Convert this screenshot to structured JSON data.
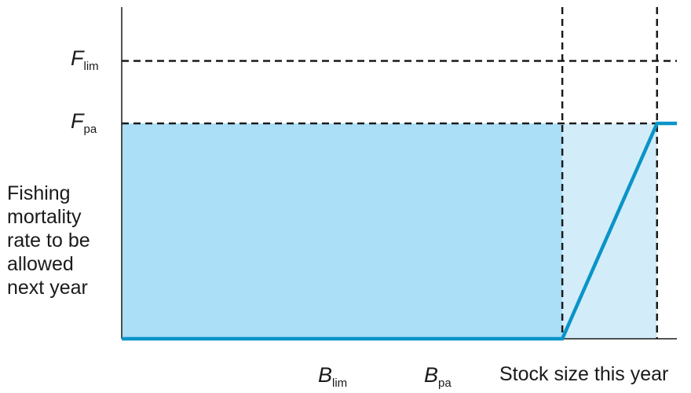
{
  "chart_data": {
    "type": "line",
    "title": "",
    "xlabel": "Stock size this year",
    "ylabel_lines": [
      "Fishing",
      "mortality",
      "rate to be",
      "allowed",
      "next year"
    ],
    "x_ticks": [
      {
        "symbol": "B",
        "sub": "lim",
        "value": 1
      },
      {
        "symbol": "B",
        "sub": "pa",
        "value": 1.43
      }
    ],
    "y_ticks": [
      {
        "symbol": "F",
        "sub": "lim",
        "value": 1.29
      },
      {
        "symbol": "F",
        "sub": "pa",
        "value": 1
      }
    ],
    "xlim": [
      -1,
      1.52
    ],
    "ylim": [
      0,
      1.54
    ],
    "xmax_line": 1.52,
    "series": [
      {
        "x": [
          -1,
          1,
          1.43,
          1.52
        ],
        "y": [
          0,
          0,
          1,
          1
        ],
        "color": "#0a94c8"
      }
    ],
    "regions": [
      {
        "x": [
          -1,
          1
        ],
        "y": [
          0,
          1
        ],
        "color": "#aadff7"
      },
      {
        "x": [
          1,
          1.43
        ],
        "y": [
          0,
          1
        ],
        "color": "#d2edf9"
      }
    ],
    "reference_lines": {
      "style": "dashed",
      "color": "#1a1a1a"
    },
    "grid": false,
    "legend": "none"
  }
}
